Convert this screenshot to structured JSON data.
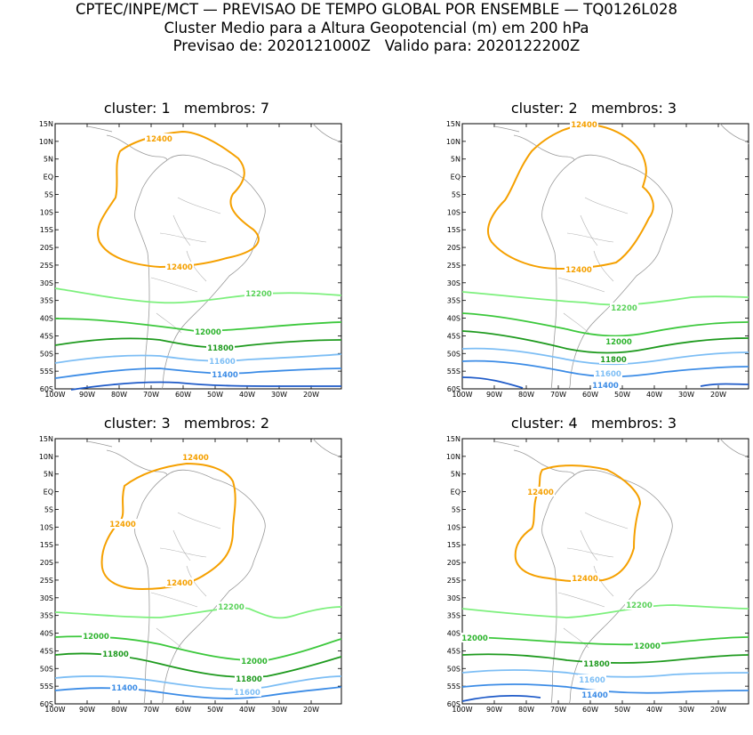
{
  "header": {
    "line1": "CPTEC/INPE/MCT — PREVISAO DE TEMPO GLOBAL POR ENSEMBLE — TQ0126L028",
    "line2": "Cluster Medio para a Altura Geopotencial (m) em 200 hPa",
    "line3": "Previsao de: 2020121000Z   Valido para: 2020122200Z"
  },
  "axes": {
    "lat_labels": [
      "15N",
      "10N",
      "5N",
      "EQ",
      "5S",
      "10S",
      "15S",
      "20S",
      "25S",
      "30S",
      "35S",
      "40S",
      "45S",
      "50S",
      "55S",
      "60S"
    ],
    "lon_labels": [
      "100W",
      "90W",
      "80W",
      "70W",
      "60W",
      "50W",
      "40W",
      "30W",
      "20W"
    ]
  },
  "colors": {
    "c12400": "#f5a000",
    "c12200": "#7df07d",
    "c12000": "#3cc83c",
    "c11800": "#1e9a1e",
    "c11600": "#7dbef5",
    "c11400": "#3c8ce6",
    "c11200": "#1e5ac8"
  },
  "panels": [
    {
      "title": "cluster: 1   membros: 7",
      "labels": {
        "a": "12400",
        "b": "12400",
        "c": "12200",
        "d": "12000",
        "e": "11800",
        "f": "11600",
        "g": "11400"
      }
    },
    {
      "title": "cluster: 2   membros: 3",
      "labels": {
        "a": "12400",
        "b": "12400",
        "c": "12200",
        "d": "12000",
        "e": "11800",
        "f": "11600",
        "g": "11400"
      }
    },
    {
      "title": "cluster: 3   membros: 2",
      "labels": {
        "a": "12400",
        "b": "12400",
        "c": "12400",
        "d": "12200",
        "e": "12000",
        "f": "12000",
        "g": "11800",
        "h": "11800",
        "i": "11600",
        "j": "11400"
      }
    },
    {
      "title": "cluster: 4   membros: 3",
      "labels": {
        "a": "12400",
        "b": "12400",
        "c": "12200",
        "d": "12000",
        "e": "12000",
        "f": "11800",
        "g": "11600",
        "h": "11400"
      }
    }
  ]
}
